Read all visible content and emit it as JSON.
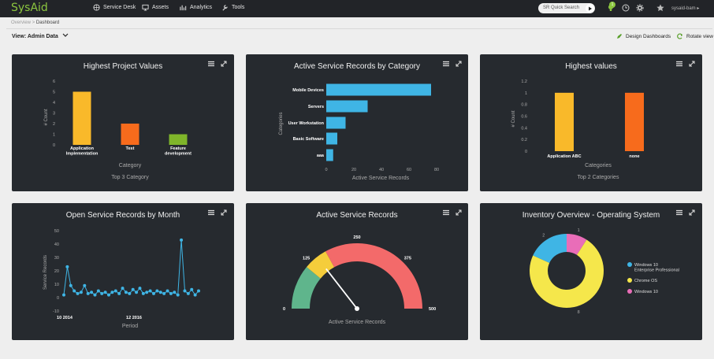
{
  "app": {
    "logo": "SysAid",
    "user": "sysaid-bam",
    "search_placeholder": "SR Quick Search",
    "notification_count": "1"
  },
  "nav": [
    "Service Desk",
    "Assets",
    "Analytics",
    "Tools"
  ],
  "breadcrumb": {
    "parent": "Overview",
    "sep": ">",
    "current": "Dashboard"
  },
  "view_label": "View: Admin Data",
  "actions": {
    "design": "Design Dashboards",
    "rotate": "Rotate view"
  },
  "panels": {
    "highest_project": {
      "title": "Highest Project Values",
      "ylabel": "# Count",
      "xlabel": "Category",
      "subtitle": "Top 3 Category"
    },
    "active_by_category": {
      "title": "Active Service Records by Category",
      "ylabel": "Categories",
      "xlabel": "Active Service Records"
    },
    "highest_values": {
      "title": "Highest values",
      "ylabel": "# Count",
      "xlabel": "Categories",
      "subtitle": "Top 2 Categories"
    },
    "open_by_month": {
      "title": "Open Service Records by Month",
      "ylabel": "Service Records",
      "xlabel": "Period"
    },
    "active_gauge": {
      "title": "Active Service Records",
      "xlabel": "Active Service Records"
    },
    "inventory": {
      "title": "Inventory Overview - Operating System"
    }
  },
  "chart_data": [
    {
      "type": "bar",
      "title": "Highest Project Values",
      "categories": [
        "Application Implementation",
        "Test",
        "Feature development"
      ],
      "values": [
        5,
        2,
        1
      ],
      "colors": [
        "#f9b92a",
        "#f76b1c",
        "#7fb52a"
      ],
      "ylim": [
        0,
        6
      ],
      "yticks": [
        0,
        1,
        2,
        3,
        4,
        5,
        6
      ],
      "ylabel": "# Count",
      "xlabel": "Category"
    },
    {
      "type": "bar",
      "orientation": "horizontal",
      "title": "Active Service Records by Category",
      "categories": [
        "Mobile Devices",
        "Servers",
        "User Workstation",
        "Basic Software",
        "aaa"
      ],
      "values": [
        76,
        30,
        14,
        8,
        5
      ],
      "color": "#3fb5e5",
      "xlim": [
        0,
        80
      ],
      "xticks": [
        0,
        20,
        40,
        60,
        80
      ],
      "xlabel": "Active Service Records",
      "ylabel": "Categories"
    },
    {
      "type": "bar",
      "title": "Highest values",
      "categories": [
        "Application ABC",
        "none"
      ],
      "values": [
        1,
        1
      ],
      "colors": [
        "#f9b92a",
        "#f76b1c"
      ],
      "ylim": [
        0,
        1.2
      ],
      "yticks": [
        0,
        0.2,
        0.4,
        0.6,
        0.8,
        1,
        1.2
      ],
      "ylabel": "# Count",
      "xlabel": "Categories"
    },
    {
      "type": "line",
      "title": "Open Service Records by Month",
      "values": [
        2,
        23,
        9,
        5,
        3,
        4,
        9,
        3,
        4,
        2,
        5,
        3,
        4,
        2,
        4,
        5,
        3,
        7,
        4,
        3,
        6,
        4,
        7,
        3,
        4,
        5,
        3,
        5,
        4,
        3,
        5,
        3,
        4,
        2,
        43,
        5,
        3,
        6,
        2,
        5
      ],
      "tick_labels": [
        "10 2014",
        "12 2016"
      ],
      "ylim": [
        -10,
        50
      ],
      "yticks": [
        -10,
        0,
        10,
        20,
        30,
        40,
        50
      ],
      "color": "#3fb5e5",
      "xlabel": "Period",
      "ylabel": "Service Records"
    },
    {
      "type": "gauge",
      "title": "Active Service Records",
      "min": 0,
      "max": 500,
      "value": 145,
      "ticks": [
        0,
        125,
        250,
        375,
        500
      ],
      "bands": [
        {
          "from": 0,
          "to": 110,
          "color": "#5fb58c"
        },
        {
          "from": 110,
          "to": 170,
          "color": "#f5cd3b"
        },
        {
          "from": 170,
          "to": 500,
          "color": "#f36a6a"
        }
      ]
    },
    {
      "type": "pie",
      "donut": true,
      "title": "Inventory Overview - Operating System",
      "slices": [
        {
          "label": "Windows 10 Enterprise Professional",
          "value": 2,
          "color": "#3fb5e5"
        },
        {
          "label": "Chrome OS",
          "value": 8,
          "color": "#f5e74b"
        },
        {
          "label": "Windows 10",
          "value": 1,
          "color": "#e96db8"
        }
      ]
    }
  ]
}
